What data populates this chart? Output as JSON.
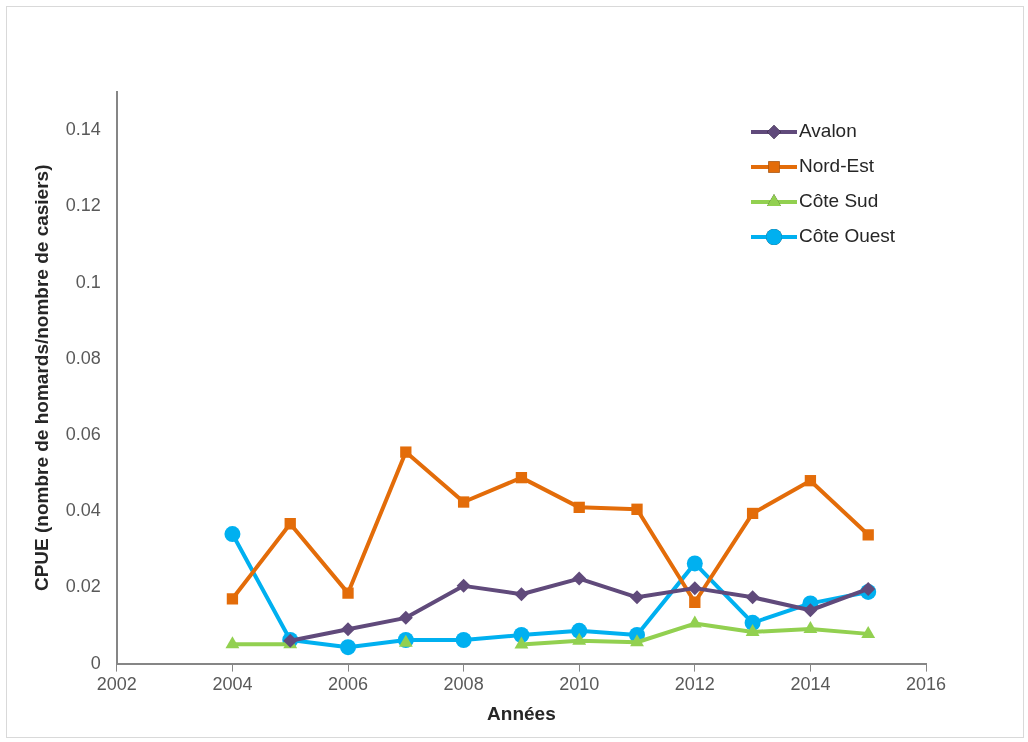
{
  "chart_data": {
    "type": "line",
    "xlabel": "Années",
    "ylabel": "CPUE (nombre de homards/nombre de casiers)",
    "x": [
      2004,
      2005,
      2006,
      2007,
      2008,
      2009,
      2010,
      2011,
      2012,
      2013,
      2014,
      2015
    ],
    "xlim": [
      2002,
      2016
    ],
    "xticks": [
      2002,
      2004,
      2006,
      2008,
      2010,
      2012,
      2014,
      2016
    ],
    "ylim": [
      0,
      0.15
    ],
    "yticks": [
      0,
      0.02,
      0.04,
      0.06,
      0.08,
      0.1,
      0.12,
      0.14
    ],
    "grid": false,
    "legend": "top right",
    "line_style": "solid",
    "series": [
      {
        "name": "Avalon",
        "color": "#604a7b",
        "marker": "diamond",
        "values": [
          null,
          0.006,
          0.009,
          0.012,
          0.0204,
          0.0182,
          0.0223,
          0.0174,
          0.0198,
          0.0174,
          0.014,
          0.0196
        ]
      },
      {
        "name": "Nord-Est",
        "color": "#e36c09",
        "marker": "square",
        "values": [
          0.017,
          0.0367,
          0.0185,
          0.0555,
          0.0424,
          0.0488,
          0.041,
          0.0405,
          0.0161,
          0.0394,
          0.048,
          0.0338
        ]
      },
      {
        "name": "Côte Sud",
        "color": "#92d050",
        "marker": "triangle",
        "values": [
          0.0051,
          0.0051,
          null,
          0.0055,
          null,
          0.005,
          0.006,
          0.0056,
          0.0105,
          0.0083,
          0.0091,
          0.0078
        ]
      },
      {
        "name": "Côte Ouest",
        "color": "#00b0f0",
        "marker": "circle",
        "values": [
          0.034,
          0.0062,
          0.0043,
          0.0062,
          0.0062,
          0.0075,
          0.0086,
          0.0075,
          0.0263,
          0.0107,
          0.0158,
          0.0188
        ]
      }
    ]
  }
}
